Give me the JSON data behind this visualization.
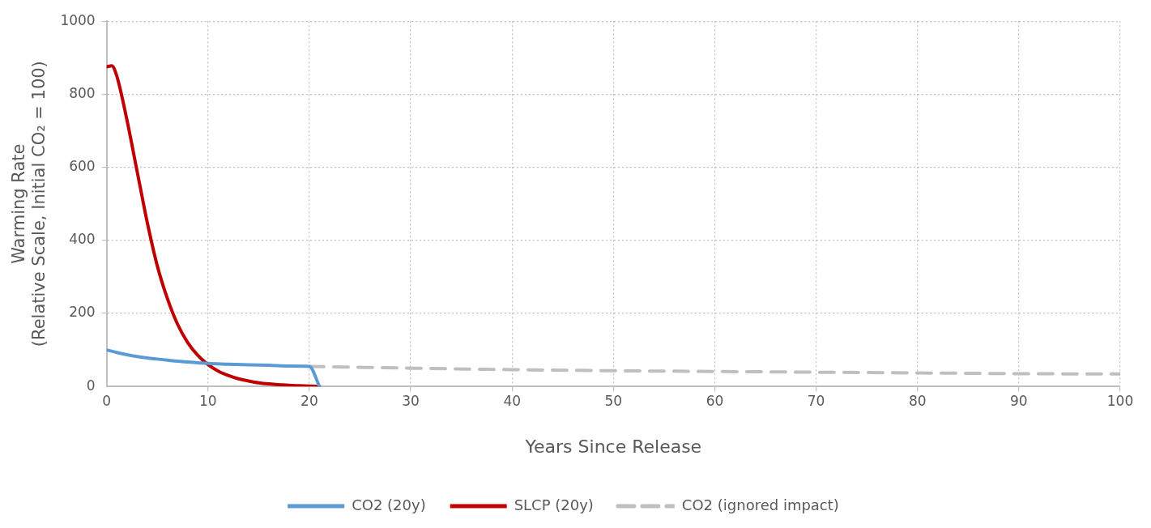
{
  "chart_data": {
    "type": "line",
    "xlabel": "Years Since Release",
    "ylabel": "Warming Rate\n(Relative Scale, Initial CO₂ = 100)",
    "xlim": [
      0,
      100
    ],
    "xticks": [
      0,
      10,
      20,
      30,
      40,
      50,
      60,
      70,
      80,
      90,
      100
    ],
    "ylim": [
      0,
      1000
    ],
    "yticks": [
      0,
      200,
      400,
      600,
      800,
      1000
    ],
    "grid": true,
    "legend": "bottom",
    "marker": "none",
    "series": [
      {
        "name": "CO2 (20y)",
        "color": "#5b9bd5",
        "line_style": "solid",
        "x": [
          0,
          1,
          2,
          3,
          4,
          5,
          6,
          7,
          8,
          9,
          10,
          12,
          14,
          16,
          18,
          20,
          21
        ],
        "values": [
          100,
          93,
          87,
          82,
          78,
          75,
          72,
          69,
          67,
          65,
          63,
          61,
          59,
          58,
          56,
          55,
          0
        ]
      },
      {
        "name": "SLCP (20y)",
        "color": "#c00000",
        "line_style": "solid",
        "x": [
          0,
          0.5,
          1,
          2,
          3,
          4,
          5,
          6,
          7,
          8,
          9,
          10,
          11,
          12,
          13,
          14,
          15,
          16,
          17,
          18,
          19,
          20,
          21
        ],
        "values": [
          875,
          878,
          850,
          730,
          590,
          450,
          330,
          240,
          170,
          120,
          85,
          60,
          42,
          30,
          21,
          15,
          10,
          7,
          5,
          3,
          2,
          1,
          0
        ]
      },
      {
        "name": "CO2 (ignored impact)",
        "color": "#bfbfbf",
        "line_style": "dashed",
        "x": [
          20,
          30,
          40,
          50,
          60,
          70,
          80,
          90,
          100
        ],
        "values": [
          55,
          50,
          46,
          43,
          41,
          39,
          37,
          35,
          34
        ]
      }
    ]
  }
}
